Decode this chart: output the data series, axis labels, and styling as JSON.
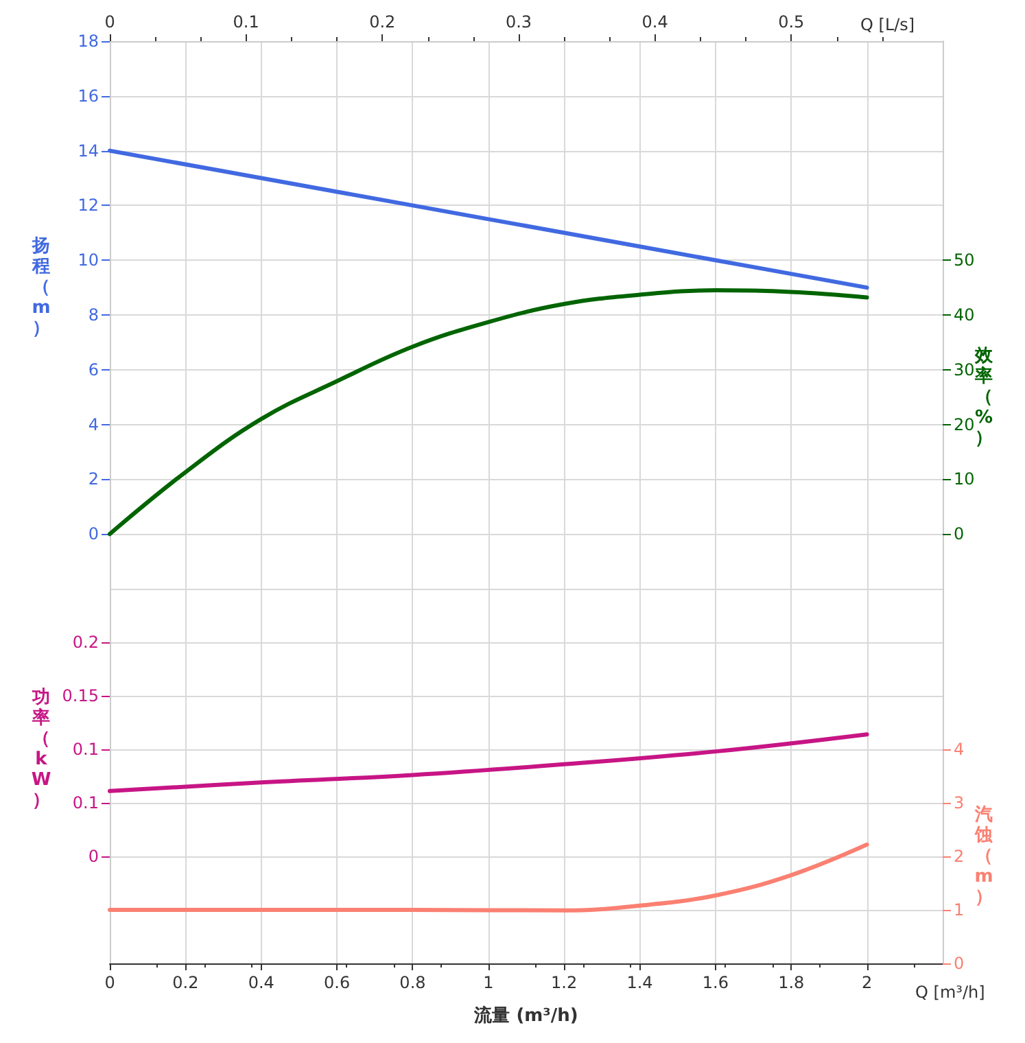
{
  "chart_data": [
    {
      "type": "line",
      "x2label": "Q [L/s]",
      "ylabel": "扬程（m）",
      "y2label": "效率（%）",
      "xlim": [
        0,
        2.2
      ],
      "xticks": [
        0,
        0.2,
        0.4,
        0.6,
        0.8,
        1,
        1.2,
        1.4,
        1.6,
        1.8,
        2
      ],
      "x2lim": [
        0,
        0.6111
      ],
      "x2ticks": [
        0,
        0.1,
        0.2,
        0.3,
        0.4,
        0.5
      ],
      "ylim": [
        -2,
        18
      ],
      "yticks": [
        0,
        2,
        4,
        6,
        8,
        10,
        12,
        14,
        16,
        18
      ],
      "y2lim": [
        -10,
        90
      ],
      "y2ticks": [
        0,
        10,
        20,
        30,
        40,
        50
      ],
      "tick_labels": "y",
      "grid": true,
      "marker": "none",
      "line_style": "solid",
      "series": [
        {
          "axis": "y",
          "color": "#4169e1",
          "x": [
            0,
            0.4,
            0.8,
            1.2,
            1.6,
            2
          ],
          "values": [
            14,
            13,
            12,
            11,
            10,
            9
          ]
        },
        {
          "axis": "y2",
          "color": "#006400",
          "x": [
            0,
            0.2,
            0.4,
            0.6,
            0.8,
            1,
            1.2,
            1.4,
            1.6,
            1.8,
            2
          ],
          "values": [
            0,
            11.3,
            21,
            27.9,
            34.2,
            38.7,
            42,
            43.7,
            44.5,
            44.2,
            43.2
          ]
        }
      ]
    },
    {
      "type": "line",
      "xlabel": "流量 (m³/h)",
      "ylabel": "功率（kW）",
      "y2label": "汽蚀（m）",
      "annotations": [
        "Q [m³/h]"
      ],
      "xlim": [
        0,
        2.2
      ],
      "xticks": [
        0,
        0.2,
        0.4,
        0.6,
        0.8,
        1,
        1.2,
        1.4,
        1.6,
        1.8,
        2
      ],
      "ylim": [
        -0.1,
        0.25
      ],
      "yticks": [
        0,
        {
          "value": 0.05,
          "label": "0.1"
        },
        0.1,
        0.15,
        0.2
      ],
      "y2lim": [
        0,
        7
      ],
      "y2ticks": [
        0,
        1,
        2,
        3,
        4
      ],
      "grid": true,
      "marker": "none",
      "line_style": "solid",
      "series": [
        {
          "axis": "y",
          "color": "#c71585",
          "x": [
            0,
            0.4,
            0.8,
            1.2,
            1.6,
            2
          ],
          "values": [
            0.061,
            0.069,
            0.076,
            0.086,
            0.098,
            0.114
          ]
        },
        {
          "axis": "y2",
          "color": "#fa8072",
          "x": [
            0,
            0.4,
            0.8,
            1.2,
            1.4,
            1.6,
            1.8,
            2
          ],
          "values": [
            1,
            1,
            1,
            0.99,
            1.08,
            1.27,
            1.65,
            2.22
          ]
        }
      ]
    }
  ]
}
